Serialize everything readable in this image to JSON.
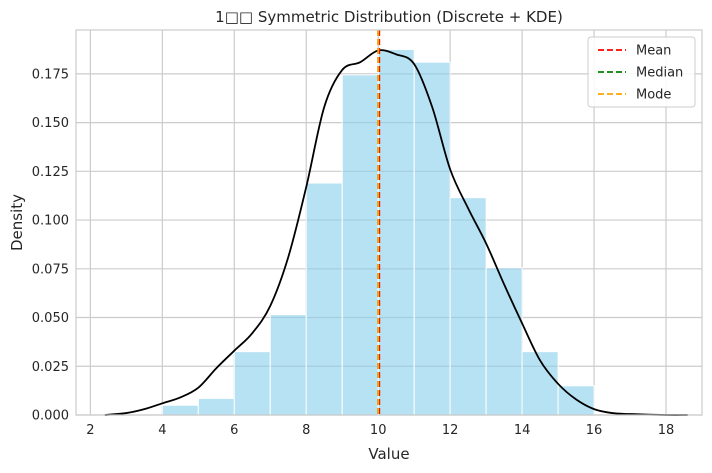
{
  "chart_data": {
    "type": "bar",
    "title": "1□□ Symmetric Distribution (Discrete + KDE)",
    "xlabel": "Value",
    "ylabel": "Density",
    "xlim": [
      1.6,
      19.0
    ],
    "ylim": [
      0,
      0.1975
    ],
    "xticks": [
      2,
      4,
      6,
      8,
      10,
      12,
      14,
      16,
      18
    ],
    "yticks": [
      0.0,
      0.025,
      0.05,
      0.075,
      0.1,
      0.125,
      0.15,
      0.175
    ],
    "ytick_labels": [
      "0.000",
      "0.025",
      "0.050",
      "0.075",
      "0.100",
      "0.125",
      "0.150",
      "0.175"
    ],
    "grid": true,
    "legend_position": "top-right",
    "histogram": {
      "bin_width": 1,
      "bins": [
        {
          "start": 4,
          "density": 0.005
        },
        {
          "start": 5,
          "density": 0.0085
        },
        {
          "start": 6,
          "density": 0.0325
        },
        {
          "start": 7,
          "density": 0.0515
        },
        {
          "start": 8,
          "density": 0.119
        },
        {
          "start": 9,
          "density": 0.1745
        },
        {
          "start": 10,
          "density": 0.1875
        },
        {
          "start": 11,
          "density": 0.181
        },
        {
          "start": 12,
          "density": 0.1115
        },
        {
          "start": 13,
          "density": 0.0755
        },
        {
          "start": 14,
          "density": 0.0325
        },
        {
          "start": 15,
          "density": 0.015
        }
      ],
      "color": "#87CEEB"
    },
    "kde": {
      "color": "#000000",
      "x": [
        2.4,
        3.0,
        3.5,
        4.0,
        4.5,
        5.0,
        5.5,
        6.0,
        6.5,
        7.0,
        7.5,
        8.0,
        8.5,
        9.0,
        9.5,
        10.0,
        10.5,
        11.0,
        11.5,
        12.0,
        12.5,
        13.0,
        13.5,
        14.0,
        14.5,
        15.0,
        15.5,
        16.0,
        16.5,
        17.0,
        18.0,
        18.6
      ],
      "y": [
        0.0,
        0.001,
        0.003,
        0.006,
        0.009,
        0.014,
        0.024,
        0.033,
        0.042,
        0.056,
        0.081,
        0.117,
        0.158,
        0.177,
        0.181,
        0.187,
        0.185,
        0.18,
        0.158,
        0.126,
        0.106,
        0.088,
        0.067,
        0.047,
        0.028,
        0.016,
        0.008,
        0.003,
        0.001,
        0.0005,
        0.0,
        0.0
      ]
    },
    "vlines": [
      {
        "name": "Mean",
        "x": 10.03,
        "color": "#ff0000"
      },
      {
        "name": "Median",
        "x": 10.0,
        "color": "#008000"
      },
      {
        "name": "Mode",
        "x": 10.0,
        "color": "#ffa500"
      }
    ]
  }
}
